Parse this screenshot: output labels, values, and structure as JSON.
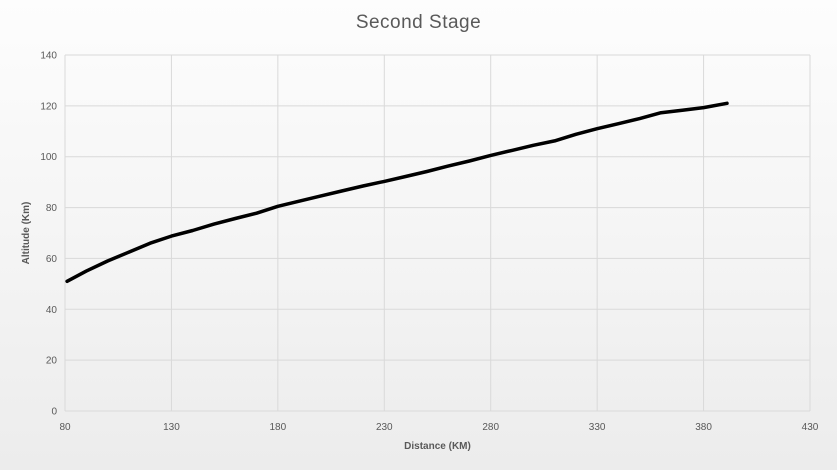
{
  "chart_data": {
    "type": "line",
    "title": "Second Stage",
    "xlabel": "Distance (KM)",
    "ylabel": "Altitude (Km)",
    "xlim": [
      80,
      430
    ],
    "ylim": [
      0,
      140
    ],
    "x_ticks": [
      80,
      130,
      180,
      230,
      280,
      330,
      380,
      430
    ],
    "y_ticks": [
      0,
      20,
      40,
      60,
      80,
      100,
      120,
      140
    ],
    "grid": true,
    "legend": "none",
    "series": [
      {
        "color": "#000000",
        "points": [
          [
            81,
            51
          ],
          [
            90,
            55
          ],
          [
            100,
            59
          ],
          [
            110,
            62.5
          ],
          [
            120,
            66
          ],
          [
            130,
            68.8
          ],
          [
            140,
            71
          ],
          [
            150,
            73.5
          ],
          [
            160,
            75.7
          ],
          [
            170,
            77.8
          ],
          [
            180,
            80.5
          ],
          [
            190,
            82.5
          ],
          [
            200,
            84.5
          ],
          [
            210,
            86.5
          ],
          [
            220,
            88.5
          ],
          [
            230,
            90.3
          ],
          [
            240,
            92.2
          ],
          [
            250,
            94.2
          ],
          [
            260,
            96.3
          ],
          [
            270,
            98.3
          ],
          [
            280,
            100.5
          ],
          [
            290,
            102.5
          ],
          [
            300,
            104.5
          ],
          [
            310,
            106.2
          ],
          [
            320,
            108.8
          ],
          [
            330,
            111
          ],
          [
            340,
            113
          ],
          [
            350,
            115
          ],
          [
            360,
            117.3
          ],
          [
            370,
            118.3
          ],
          [
            380,
            119.3
          ],
          [
            391,
            121
          ]
        ]
      }
    ]
  }
}
